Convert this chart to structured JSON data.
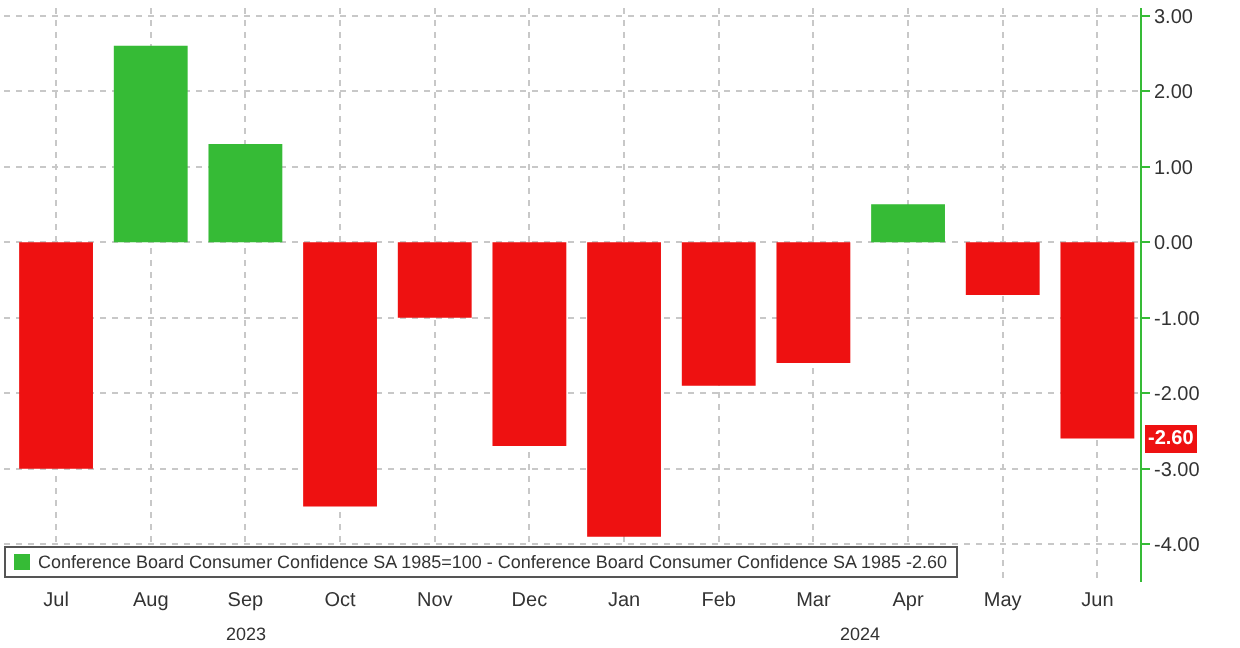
{
  "chart_data": {
    "type": "bar",
    "categories": [
      "Jul",
      "Aug",
      "Sep",
      "Oct",
      "Nov",
      "Dec",
      "Jan",
      "Feb",
      "Mar",
      "Apr",
      "May",
      "Jun"
    ],
    "series": [
      {
        "name": "Conference Board Consumer Confidence SA 1985=100 - Conference Board Consumer Confidence SA 1985 -2.60",
        "color": "#36bb36",
        "colors": [
          "#ee1111",
          "#36bb36",
          "#36bb36",
          "#ee1111",
          "#ee1111",
          "#ee1111",
          "#ee1111",
          "#ee1111",
          "#ee1111",
          "#36bb36",
          "#ee1111",
          "#ee1111"
        ],
        "values": [
          -3.0,
          2.6,
          1.3,
          -3.5,
          -1.0,
          -2.7,
          -3.9,
          -1.9,
          -1.6,
          0.5,
          -0.7,
          -2.6
        ]
      }
    ],
    "ylim": [
      -4.5,
      3.1
    ],
    "yticks": [
      {
        "value": 3,
        "label": "3.00"
      },
      {
        "value": 2,
        "label": "2.00"
      },
      {
        "value": 1,
        "label": "1.00"
      },
      {
        "value": 0,
        "label": "0.00"
      },
      {
        "value": -1,
        "label": "-1.00"
      },
      {
        "value": -2,
        "label": "-2.00"
      },
      {
        "value": -3,
        "label": "-3.00"
      },
      {
        "value": -4,
        "label": "-4.00"
      }
    ],
    "annotations": [
      "2023",
      "2024",
      {
        "text": "-2.60",
        "x": "Jun",
        "y": -2.6
      }
    ],
    "grid": true,
    "legend": "bottom left"
  }
}
